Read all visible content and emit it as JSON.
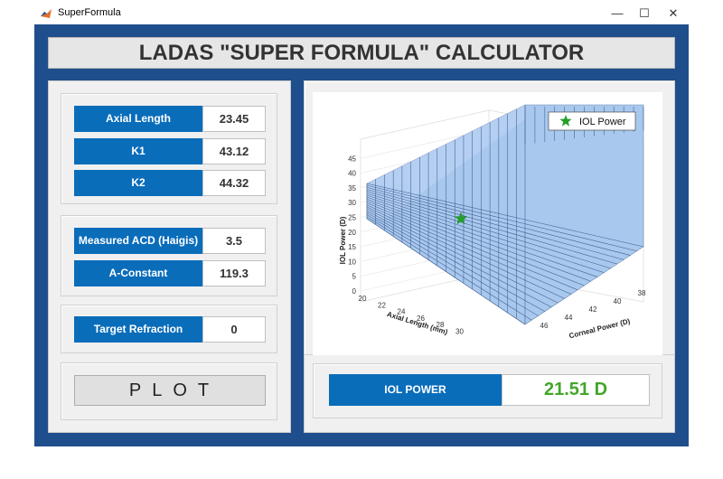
{
  "window": {
    "title": "SuperFormula"
  },
  "header": {
    "title": "LADAS \"SUPER FORMULA\" CALCULATOR"
  },
  "inputs": {
    "axial_length": {
      "label": "Axial Length",
      "value": "23.45"
    },
    "k1": {
      "label": "K1",
      "value": "43.12"
    },
    "k2": {
      "label": "K2",
      "value": "44.32"
    },
    "measured_acd": {
      "label": "Measured ACD (Haigis)",
      "value": "3.5"
    },
    "a_constant": {
      "label": "A-Constant",
      "value": "119.3"
    },
    "target_refraction": {
      "label": "Target Refraction",
      "value": "0"
    }
  },
  "plot_button": {
    "label": "PLOT"
  },
  "result": {
    "label": "IOL POWER",
    "value": "21.51 D"
  },
  "chart_data": {
    "type": "surface",
    "legend": "IOL Power",
    "zlabel": "IOL Power (D)",
    "xlabel": "Axial Length (mm)",
    "ylabel": "Corneal Power (D)",
    "z_ticks": [
      "0",
      "5",
      "10",
      "15",
      "20",
      "25",
      "30",
      "35",
      "40",
      "45"
    ],
    "x_ticks": [
      "20",
      "22",
      "24",
      "26",
      "28",
      "30"
    ],
    "y_ticks": [
      "38",
      "40",
      "42",
      "44",
      "46"
    ],
    "point": {
      "axial_length": 23.45,
      "corneal_power": 43.72,
      "iol_power": 21.51
    },
    "colors": {
      "surface": "#a9c8ee",
      "mesh": "#2f4f82",
      "marker": "#22a02a"
    }
  }
}
